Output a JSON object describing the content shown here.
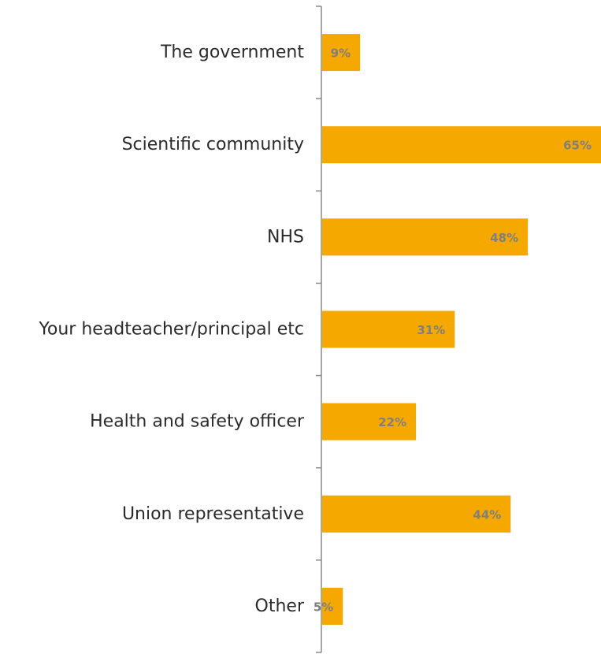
{
  "chart_data": {
    "type": "bar",
    "orientation": "horizontal",
    "categories": [
      "The government",
      "Scientific community",
      "NHS",
      "Your headteacher/principal etc",
      "Health and safety officer",
      "Union representative",
      "Other"
    ],
    "values": [
      9,
      65,
      48,
      31,
      22,
      44,
      5
    ],
    "value_labels": [
      "9%",
      "65%",
      "48%",
      "31%",
      "22%",
      "44%",
      "5%"
    ],
    "xlim": [
      0,
      65
    ],
    "grid": false,
    "legend": "none",
    "colors": {
      "bar": "#F5A800",
      "value_label": "#7F7F7F",
      "axis": "#8C8C8C",
      "category_label": "#2B2B2B"
    }
  }
}
